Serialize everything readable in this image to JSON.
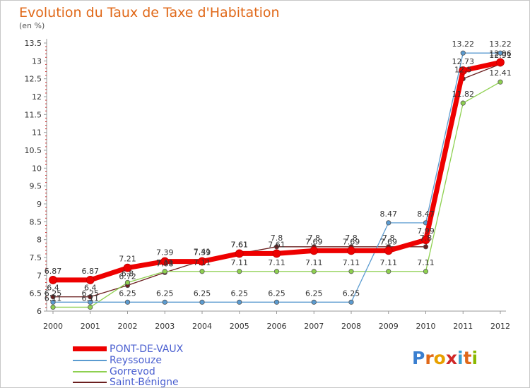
{
  "title": "Evolution du Taux de Taxe d'Habitation",
  "unit": "(en %)",
  "logo": {
    "text": "Proxiti",
    "letter_colors": [
      "#3a7fd0",
      "#e06818",
      "#e8a000",
      "#d02828",
      "#3aa0d0",
      "#e06818",
      "#8ab800"
    ]
  },
  "chart_data": {
    "type": "line",
    "x": [
      "2000",
      "2001",
      "2002",
      "2003",
      "2004",
      "2005",
      "2006",
      "2007",
      "2008",
      "2009",
      "2010",
      "2011",
      "2012"
    ],
    "ylim": [
      6,
      13.5
    ],
    "yticks": [
      "6",
      "6.5",
      "7",
      "7.5",
      "8",
      "8.5",
      "9",
      "9.5",
      "10",
      "10.5",
      "11",
      "11.5",
      "12",
      "12.5",
      "13",
      "13.5"
    ],
    "grid": false,
    "legend_position": "bottom-left",
    "series": [
      {
        "name": "Saint-Bénigne",
        "color": "#6b1f1f",
        "width": 1.3,
        "values": [
          6.4,
          6.4,
          6.72,
          7.08,
          7.41,
          7.61,
          7.8,
          7.8,
          7.8,
          7.8,
          7.8,
          12.5,
          12.91
        ]
      },
      {
        "name": "Gorrevod",
        "color": "#8ed050",
        "width": 1.3,
        "values": [
          6.11,
          6.11,
          6.8,
          7.11,
          7.11,
          7.11,
          7.11,
          7.11,
          7.11,
          7.11,
          7.11,
          11.82,
          12.41
        ]
      },
      {
        "name": "Reyssouze",
        "color": "#5b9bd0",
        "width": 1.3,
        "values": [
          6.25,
          6.25,
          6.25,
          6.25,
          6.25,
          6.25,
          6.25,
          6.25,
          6.25,
          8.47,
          8.47,
          13.22,
          13.22
        ]
      },
      {
        "name": "PONT-DE-VAUX",
        "color": "#ee0000",
        "width": 7,
        "values": [
          6.87,
          6.87,
          7.21,
          7.39,
          7.39,
          7.61,
          7.61,
          7.69,
          7.69,
          7.69,
          7.99,
          12.73,
          12.96
        ]
      }
    ],
    "labels": [
      {
        "series": "Saint-Bénigne",
        "values": [
          "6.4",
          "6.4",
          "6.72",
          "7.08",
          "7.41",
          "7.61",
          "7.8",
          "7.8",
          "7.8",
          "7.8",
          "7.8",
          "12.5",
          "12.91"
        ]
      },
      {
        "series": "Gorrevod",
        "values": [
          "6.11",
          "6.11",
          "6.8",
          "7.11",
          "7.11",
          "7.11",
          "7.11",
          "7.11",
          "7.11",
          "7.11",
          "7.11",
          "11.82",
          "12.41"
        ]
      },
      {
        "series": "Reyssouze",
        "values": [
          "6.25",
          "6.25",
          "6.25",
          "6.25",
          "6.25",
          "6.25",
          "6.25",
          "6.25",
          "6.25",
          "8.47",
          "8.47",
          "13.22",
          "13.22"
        ]
      },
      {
        "series": "PONT-DE-VAUX",
        "values": [
          "6.87",
          "6.87",
          "7.21",
          "7.39",
          "7.39",
          "7.61",
          "7.61",
          "7.69",
          "7.69",
          "7.69",
          "7.99",
          "12.73",
          "12.96"
        ]
      }
    ],
    "legend": [
      {
        "name": "PONT-DE-VAUX",
        "color": "#ee0000"
      },
      {
        "name": "Reyssouze",
        "color": "#5b9bd0"
      },
      {
        "name": "Gorrevod",
        "color": "#8ed050"
      },
      {
        "name": "Saint-Bénigne",
        "color": "#6b1f1f"
      }
    ]
  }
}
